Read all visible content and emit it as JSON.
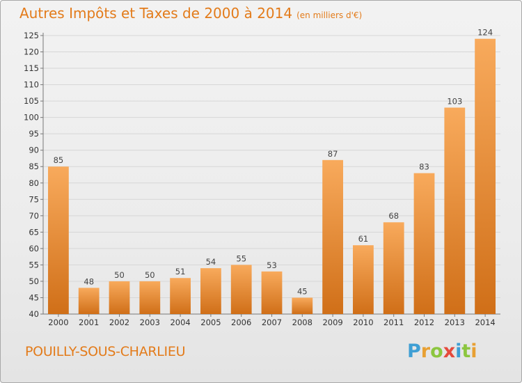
{
  "title": "Autres Impôts et Taxes de 2000 à 2014",
  "subtitle": "(en milliers d'€)",
  "commune": "POUILLY-SOUS-CHARLIEU",
  "logo": {
    "letters": [
      "P",
      "r",
      "o",
      "x",
      "i",
      "t",
      "i"
    ],
    "colors": [
      "#3f9fd4",
      "#e8a033",
      "#8cc63f",
      "#e54a3c",
      "#3f9fd4",
      "#8cc63f",
      "#e8a033"
    ]
  },
  "colors": {
    "title": "#e37b1a",
    "bar_top": "#f8aa5c",
    "bar_bottom": "#d06f18",
    "grid": "#d6d6d6"
  },
  "chart_data": {
    "type": "bar",
    "categories": [
      "2000",
      "2001",
      "2002",
      "2003",
      "2004",
      "2005",
      "2006",
      "2007",
      "2008",
      "2009",
      "2010",
      "2011",
      "2012",
      "2013",
      "2014"
    ],
    "values": [
      85,
      48,
      50,
      50,
      51,
      54,
      55,
      53,
      45,
      87,
      61,
      68,
      83,
      103,
      124
    ],
    "ylim": [
      40,
      125
    ],
    "yticks": [
      40,
      45,
      50,
      55,
      60,
      65,
      70,
      75,
      80,
      85,
      90,
      95,
      100,
      105,
      110,
      115,
      120,
      125
    ],
    "grid": true,
    "title": "Autres Impôts et Taxes de 2000 à 2014",
    "subtitle": "(en milliers d'€)"
  }
}
